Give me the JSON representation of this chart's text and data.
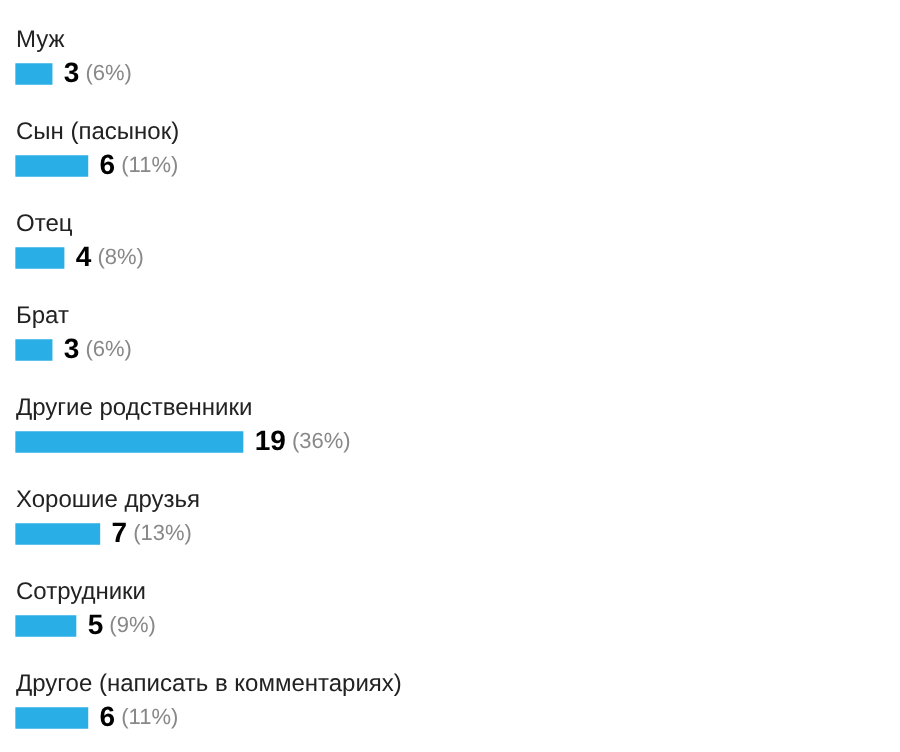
{
  "chart_data": {
    "type": "bar",
    "orientation": "horizontal",
    "categories": [
      "Муж",
      "Сын (пасынок)",
      "Отец",
      "Брат",
      "Другие родственники",
      "Хорошие друзья",
      "Сотрудники",
      "Другое (написать в комментариях)"
    ],
    "values": [
      3,
      6,
      4,
      3,
      19,
      7,
      5,
      6
    ],
    "value_labels": [
      "3 (6%)",
      "6 (11%)",
      "4 (8%)",
      "3 (6%)",
      "19 (36%)",
      "7 (13%)",
      "5 (9%)",
      "6 (11%)"
    ],
    "color": "#2aaee6",
    "legend": false
  }
}
